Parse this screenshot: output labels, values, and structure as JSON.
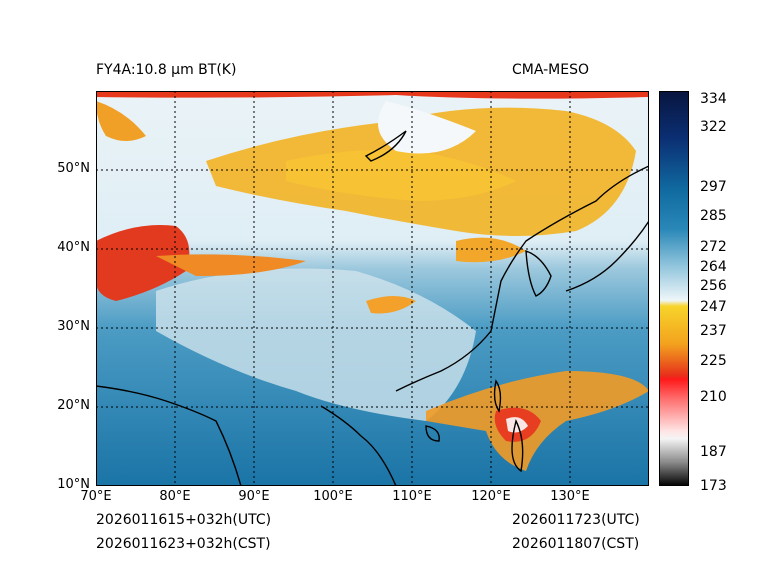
{
  "header": {
    "title_left": "FY4A:10.8 µm BT(K)",
    "title_right": "CMA-MESO"
  },
  "footer": {
    "utc_left": "2026011615+032h(UTC)",
    "cst_left": "2026011623+032h(CST)",
    "utc_right": "2026011723(UTC)",
    "cst_right": "2026011807(CST)"
  },
  "axes": {
    "lat_labels": [
      "50°N",
      "40°N",
      "30°N",
      "20°N",
      "10°N"
    ],
    "lon_labels": [
      "70°E",
      "80°E",
      "90°E",
      "100°E",
      "110°E",
      "120°E",
      "130°E"
    ]
  },
  "colorbar": {
    "labels": [
      "334",
      "322",
      "297",
      "285",
      "272",
      "264",
      "256",
      "247",
      "237",
      "225",
      "210",
      "187",
      "173"
    ]
  },
  "colors": {
    "ocean": "#1c7fb0",
    "land_warm": "#b9d9e8",
    "cold_cloud": "#f2a81e",
    "very_cold": "#e83b1e",
    "cloud_white": "#eef5f8"
  }
}
